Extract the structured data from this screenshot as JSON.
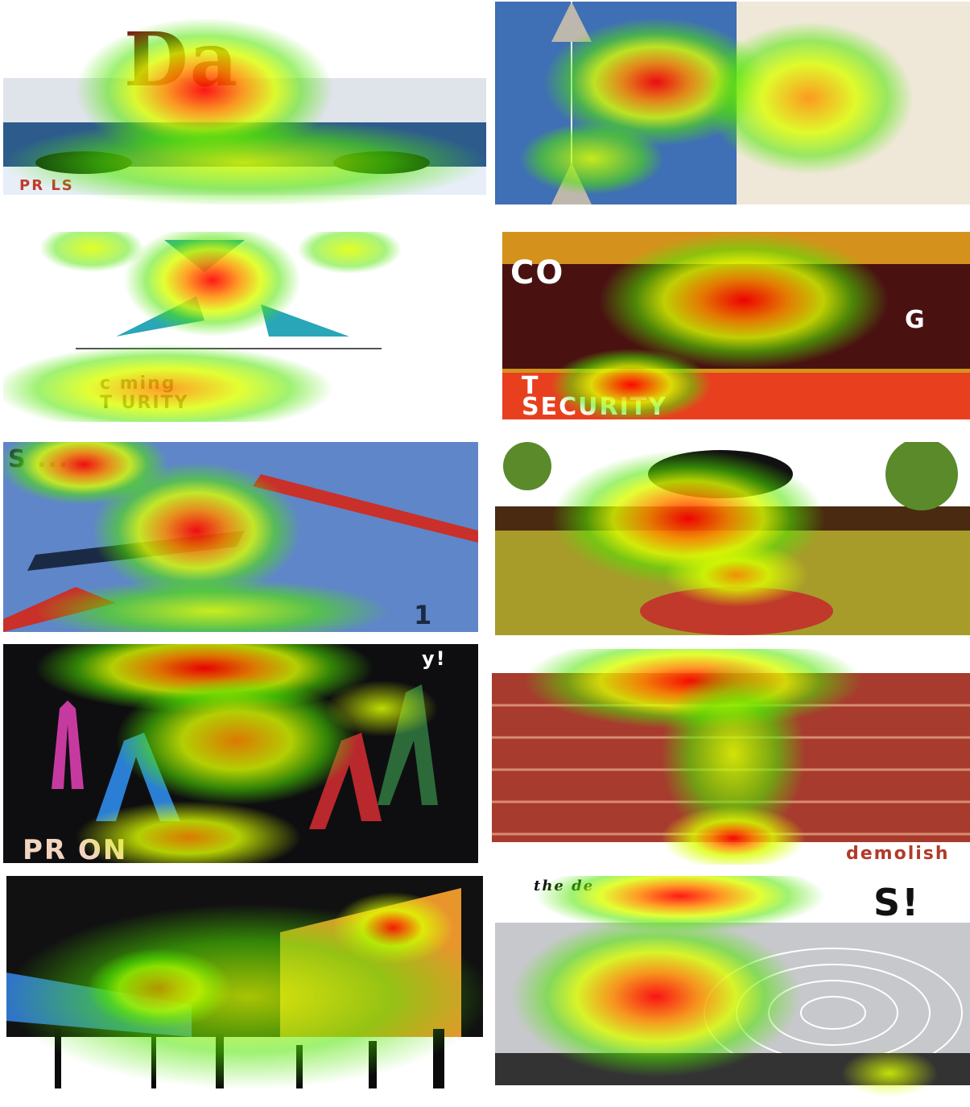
{
  "figure": {
    "panels": [
      {
        "id": "p1",
        "description_label": "",
        "texts": [
          {
            "key": "da",
            "value": "Da"
          },
          {
            "key": "bottom",
            "value": "PR                                      LS"
          }
        ],
        "colors": {
          "bg1": "#ffffff",
          "bg2": "#2d5c8c",
          "accent": "#7a1a12"
        }
      },
      {
        "id": "p2",
        "texts": [],
        "colors": {
          "left": "#3f6fb4",
          "right": "#efe8d8"
        }
      },
      {
        "id": "p3",
        "texts": [
          {
            "key": "line1",
            "value": "c      ming"
          },
          {
            "key": "line2",
            "value": "T          URITY"
          }
        ],
        "colors": {
          "bg": "#ffffff",
          "figure": "#2aa6b9"
        }
      },
      {
        "id": "p4",
        "texts": [
          {
            "key": "top",
            "value": "CO"
          },
          {
            "key": "bottom1",
            "value": "T"
          },
          {
            "key": "bottom2",
            "value": "SECURITY"
          },
          {
            "key": "g",
            "value": "G"
          }
        ],
        "colors": {
          "top": "#d4921c",
          "dark": "#4a1111",
          "red": "#e8401e"
        }
      },
      {
        "id": "p5",
        "texts": [
          {
            "key": "top",
            "value": "S       ..."
          },
          {
            "key": "bottom",
            "value": "1"
          }
        ],
        "colors": {
          "bg": "#5f86c8",
          "red": "#c9302a",
          "dark": "#1b2a44"
        }
      },
      {
        "id": "p6",
        "texts": [],
        "colors": {
          "sky": "#ffffff",
          "ground": "#a79b2a",
          "brown": "#4a2a10",
          "red": "#c0392b"
        }
      },
      {
        "id": "p7",
        "texts": [
          {
            "key": "top",
            "value": "y!"
          },
          {
            "key": "bottom",
            "value": "PR       ON"
          }
        ],
        "colors": {
          "bg": "#0e0e10",
          "pink": "#c63aa0",
          "blue": "#2a7fd4",
          "red": "#b8282c"
        }
      },
      {
        "id": "p8",
        "texts": [
          {
            "key": "bottom",
            "value": "demolish"
          }
        ],
        "colors": {
          "brick": "#a63b2e",
          "mortar": "#d98c70",
          "white": "#ffffff"
        }
      },
      {
        "id": "p9",
        "texts": [],
        "colors": {
          "sky": "#111111",
          "blue": "#2f74c9",
          "orange": "#e8962c",
          "dark": "#0a0a0a"
        }
      },
      {
        "id": "p10",
        "texts": [
          {
            "key": "top",
            "value": "the            de"
          },
          {
            "key": "big",
            "value": "S!"
          }
        ],
        "colors": {
          "sky": "#c7c8cc",
          "grid": "#ffffff",
          "dark": "#222222"
        }
      }
    ]
  }
}
